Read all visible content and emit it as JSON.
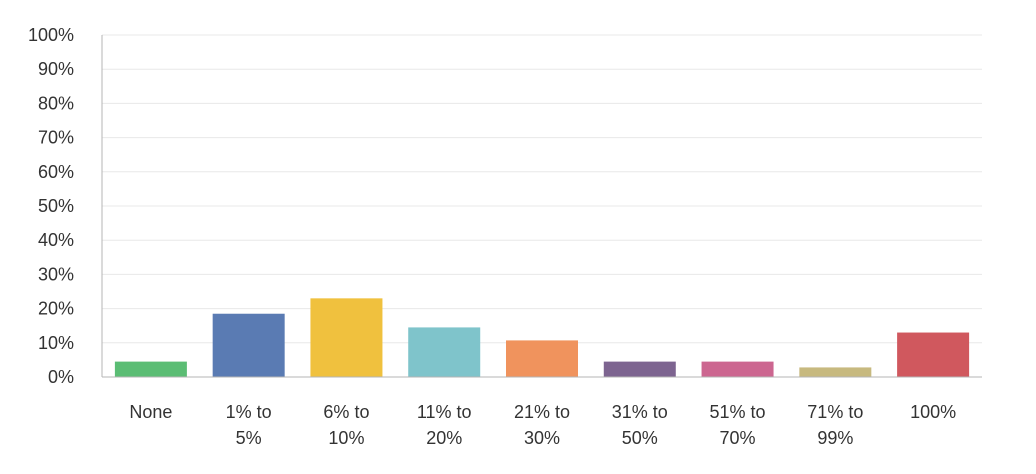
{
  "chart_data": {
    "type": "bar",
    "categories": [
      [
        "None"
      ],
      [
        "1% to",
        "5%"
      ],
      [
        "6% to",
        "10%"
      ],
      [
        "11% to",
        "20%"
      ],
      [
        "21% to",
        "30%"
      ],
      [
        "31% to",
        "50%"
      ],
      [
        "51% to",
        "70%"
      ],
      [
        "71% to",
        "99%"
      ],
      [
        "100%"
      ]
    ],
    "values": [
      4.5,
      18.5,
      23,
      14.5,
      10.7,
      4.5,
      4.5,
      2.8,
      13
    ],
    "colors": [
      "#5bbd74",
      "#5a7bb3",
      "#f0c13e",
      "#7fc4cb",
      "#f0935d",
      "#7d6490",
      "#cc6690",
      "#c7b97f",
      "#d0585e"
    ],
    "ylim": [
      0,
      100
    ],
    "yticks": [
      "0%",
      "10%",
      "20%",
      "30%",
      "40%",
      "50%",
      "60%",
      "70%",
      "80%",
      "90%",
      "100%"
    ],
    "grid": true,
    "gridline_color": "#e8e8e8",
    "axis_color": "#b5b5b5",
    "title": "",
    "xlabel": "",
    "ylabel": ""
  }
}
